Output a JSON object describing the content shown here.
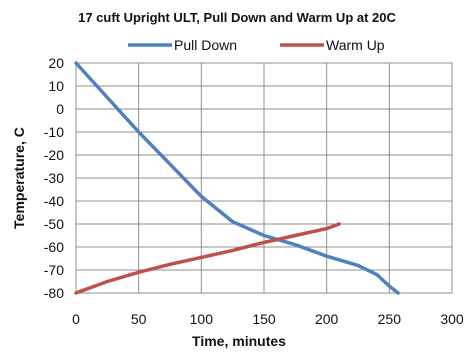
{
  "chart_data": {
    "type": "line",
    "title": "17 cuft Upright ULT, Pull  Down and Warm Up at 20C",
    "xlabel": "Time, minutes",
    "ylabel": "Temperature, C",
    "xlim": [
      0,
      300
    ],
    "ylim": [
      -80,
      20
    ],
    "xticks": [
      0,
      50,
      100,
      150,
      200,
      250,
      300
    ],
    "yticks": [
      20,
      10,
      0,
      -10,
      -20,
      -30,
      -40,
      -50,
      -60,
      -70,
      -80
    ],
    "grid": true,
    "legend_position": "top",
    "series": [
      {
        "name": "Pull Down",
        "color": "#4f81bd",
        "x": [
          0,
          25,
          50,
          75,
          100,
          125,
          150,
          175,
          200,
          225,
          240,
          250,
          257
        ],
        "y": [
          20,
          5,
          -10,
          -24,
          -38,
          -49,
          -55,
          -59,
          -64,
          -68,
          -72,
          -77,
          -80
        ]
      },
      {
        "name": "Warm Up",
        "color": "#c0504d",
        "x": [
          0,
          25,
          50,
          75,
          100,
          125,
          150,
          175,
          200,
          210
        ],
        "y": [
          -80,
          -75,
          -71,
          -67.5,
          -64.5,
          -61.5,
          -58,
          -55,
          -52,
          -50
        ]
      }
    ]
  }
}
